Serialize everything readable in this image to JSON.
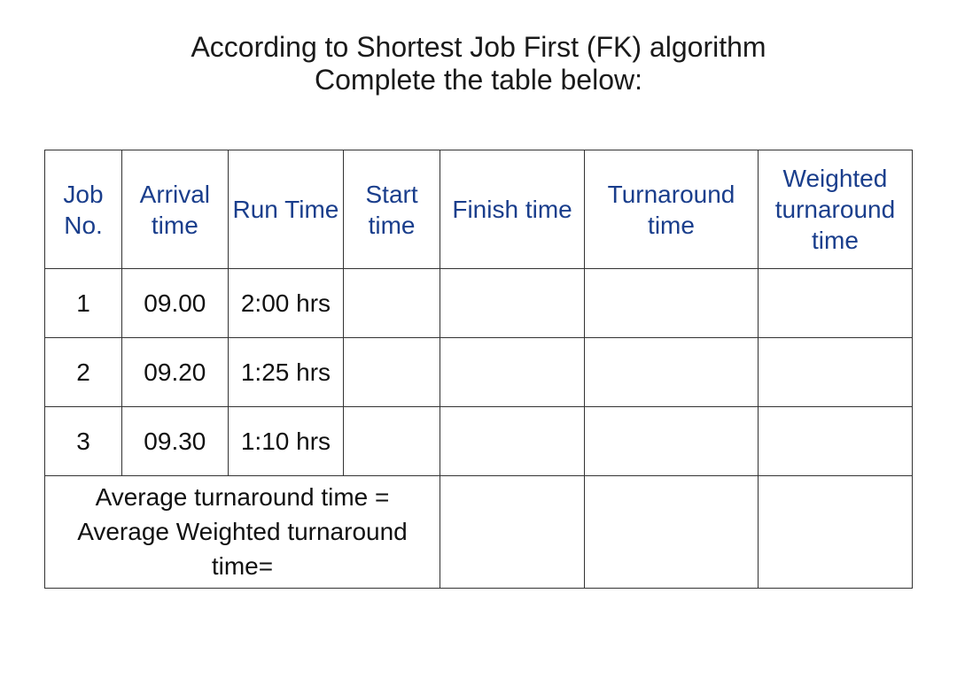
{
  "title": {
    "line1": "According to Shortest Job First (FK) algorithm",
    "line2": "Complete the table below:"
  },
  "table": {
    "headers": {
      "job_no": "Job No.",
      "arrival": "Arrival time",
      "run": "Run Time",
      "start": "Start time",
      "finish": "Finish time",
      "turnaround": "Turnaround time",
      "weighted_ta": "Weighted turnaround time"
    },
    "rows": [
      {
        "job_no": "1",
        "arrival": "09.00",
        "run": "2:00 hrs",
        "start": "",
        "finish": "",
        "turnaround": "",
        "weighted_ta": ""
      },
      {
        "job_no": "2",
        "arrival": "09.20",
        "run": "1:25 hrs",
        "start": "",
        "finish": "",
        "turnaround": "",
        "weighted_ta": ""
      },
      {
        "job_no": "3",
        "arrival": "09.30",
        "run": "1:10 hrs",
        "start": "",
        "finish": "",
        "turnaround": "",
        "weighted_ta": ""
      }
    ],
    "footer": {
      "avg_ta": "Average turnaround time =",
      "avg_wta": "Average Weighted turnaround time="
    }
  },
  "styles": {
    "header_color": "#1a3e8c",
    "body_color": "#111111",
    "border_color": "#333333",
    "background": "#ffffff",
    "title_fontsize": 32,
    "cell_fontsize": 28
  }
}
